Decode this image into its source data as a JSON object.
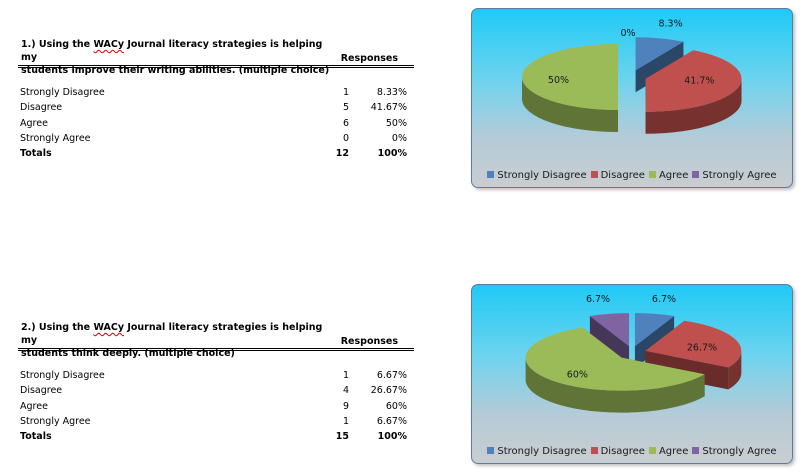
{
  "questions": [
    {
      "number": "1.)",
      "title_pre": "Using the",
      "title_wacy": "WACy",
      "title_post": "Journal literacy strategies is helping my",
      "title_line2": "students improve their writing abilities. (multiple choice)",
      "responses_header": "Responses",
      "rows": [
        {
          "label": "Strongly Disagree",
          "count": "1",
          "pct": "8.33%"
        },
        {
          "label": "Disagree",
          "count": "5",
          "pct": "41.67%"
        },
        {
          "label": "Agree",
          "count": "6",
          "pct": "50%"
        },
        {
          "label": "Strongly Agree",
          "count": "0",
          "pct": "0%"
        }
      ],
      "total": {
        "label": "Totals",
        "count": "12",
        "pct": "100%"
      }
    },
    {
      "number": "2.)",
      "title_pre": "Using the",
      "title_wacy": "WACy",
      "title_post": "Journal literacy strategies is helping my",
      "title_line2": "students think deeply. (multiple choice)",
      "responses_header": "Responses",
      "rows": [
        {
          "label": "Strongly Disagree",
          "count": "1",
          "pct": "6.67%"
        },
        {
          "label": "Disagree",
          "count": "4",
          "pct": "26.67%"
        },
        {
          "label": "Agree",
          "count": "9",
          "pct": "60%"
        },
        {
          "label": "Strongly Agree",
          "count": "1",
          "pct": "6.67%"
        }
      ],
      "total": {
        "label": "Totals",
        "count": "15",
        "pct": "100%"
      }
    }
  ],
  "legend": [
    "Strongly Disagree",
    "Disagree",
    "Agree",
    "Strongly Agree"
  ],
  "colors": {
    "strongly_disagree": "#4f81bd",
    "disagree": "#c0504d",
    "agree": "#9bbb59",
    "strongly_agree": "#8064a2"
  },
  "chart_data": [
    {
      "type": "pie",
      "style": "3d exploded",
      "categories": [
        "Strongly Disagree",
        "Disagree",
        "Agree",
        "Strongly Agree"
      ],
      "values": [
        8.3,
        41.7,
        50,
        0
      ],
      "data_labels": [
        "8.3%",
        "41.7%",
        "50%",
        "0%"
      ],
      "legend_position": "bottom"
    },
    {
      "type": "pie",
      "style": "3d exploded",
      "categories": [
        "Strongly Disagree",
        "Disagree",
        "Agree",
        "Strongly Agree"
      ],
      "values": [
        6.7,
        26.7,
        60,
        6.7
      ],
      "data_labels": [
        "6.7%",
        "26.7%",
        "60%",
        "6.7%"
      ],
      "legend_position": "bottom"
    }
  ]
}
